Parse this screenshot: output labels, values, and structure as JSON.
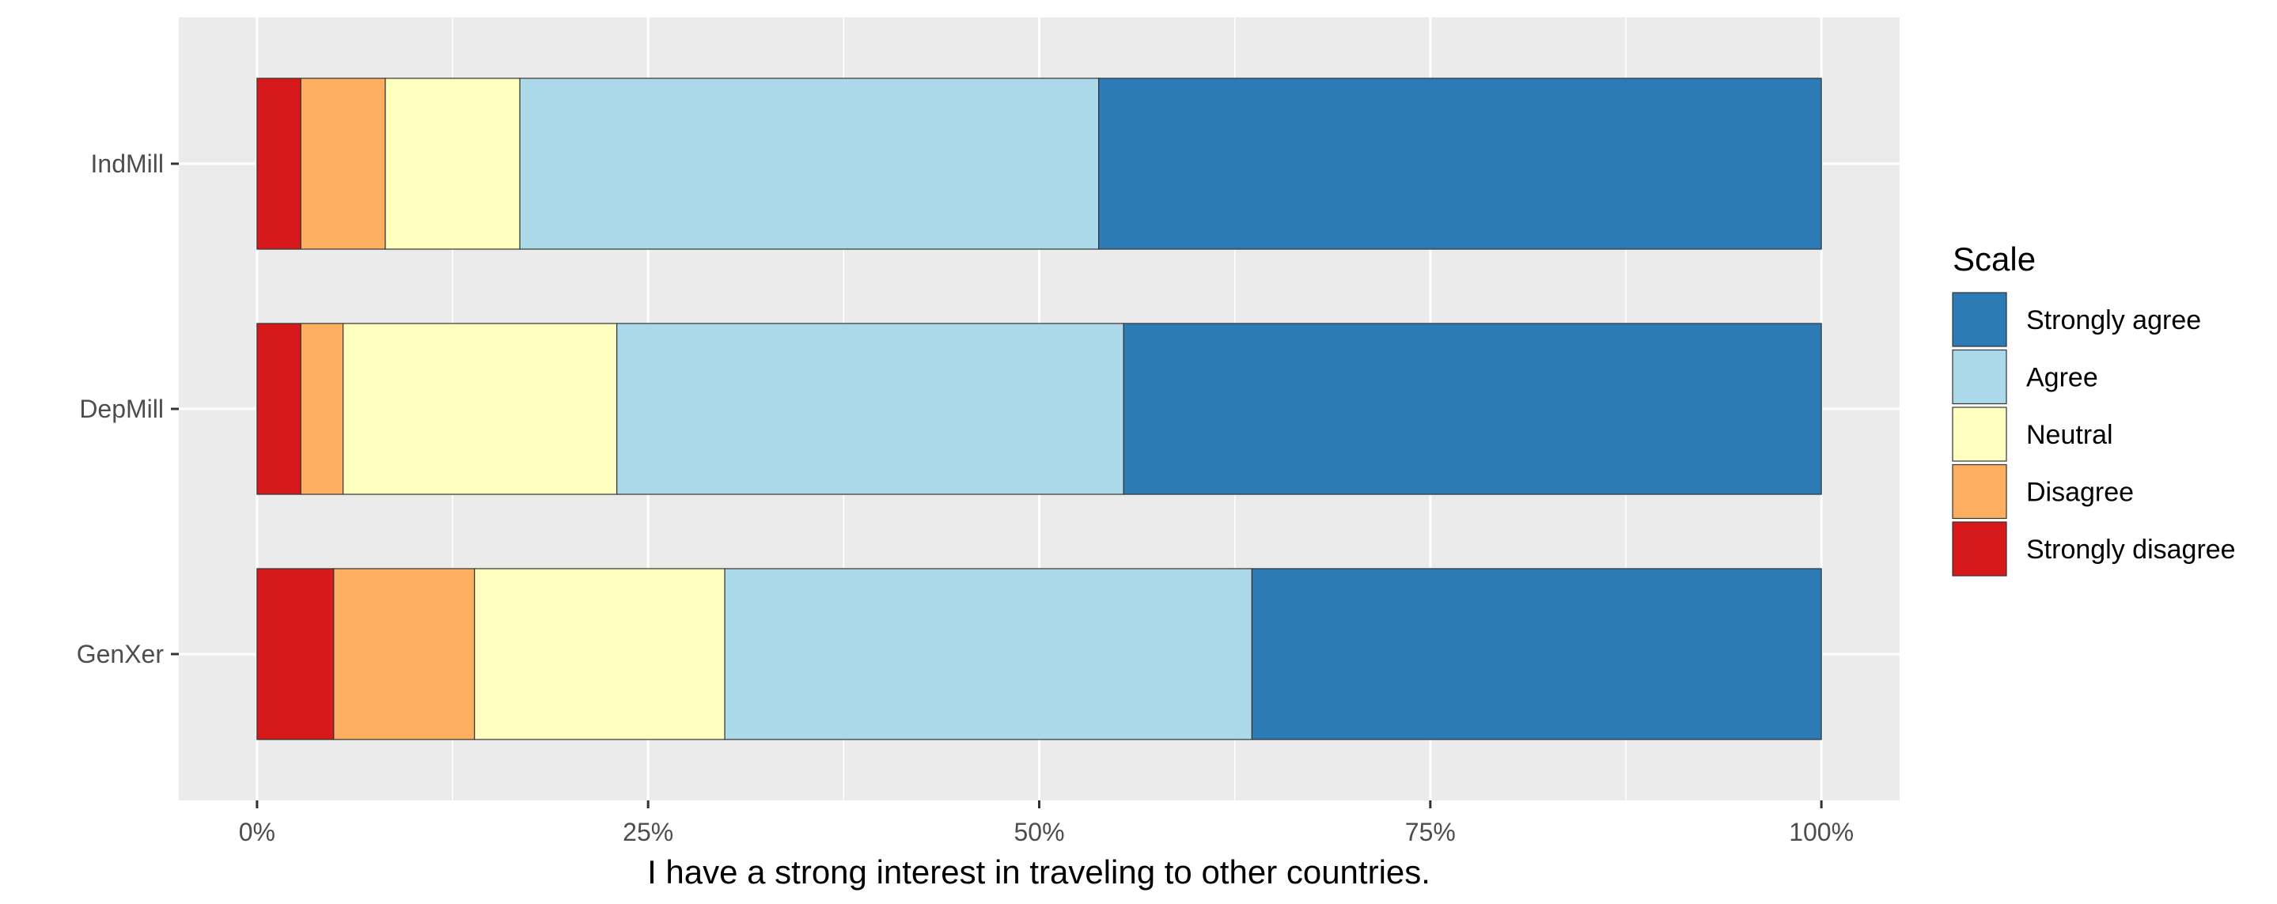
{
  "chart_data": {
    "type": "bar",
    "orientation": "horizontal",
    "stacked": "percent",
    "categories": [
      "IndMill",
      "DepMill",
      "GenXer"
    ],
    "series": [
      {
        "name": "Strongly disagree",
        "color": "#d7191c",
        "values": [
          2.8,
          2.8,
          4.9
        ]
      },
      {
        "name": "Disagree",
        "color": "#fdae61",
        "values": [
          5.4,
          2.7,
          9.0
        ]
      },
      {
        "name": "Neutral",
        "color": "#ffffbf",
        "values": [
          8.6,
          17.5,
          16.0
        ]
      },
      {
        "name": "Agree",
        "color": "#abd9e9",
        "values": [
          37.0,
          32.4,
          33.7
        ]
      },
      {
        "name": "Strongly agree",
        "color": "#2c7bb6",
        "values": [
          46.2,
          44.6,
          36.4
        ]
      }
    ],
    "xlabel": "I have a strong interest in traveling to other countries.",
    "ylabel": "",
    "xlim": [
      -5,
      105
    ],
    "x_ticks": [
      0,
      25,
      50,
      75,
      100
    ],
    "x_tick_labels": [
      "0%",
      "25%",
      "50%",
      "75%",
      "100%"
    ],
    "grid": true,
    "legend": {
      "title": "Scale",
      "position": "right",
      "order": [
        "Strongly agree",
        "Agree",
        "Neutral",
        "Disagree",
        "Strongly disagree"
      ]
    }
  }
}
